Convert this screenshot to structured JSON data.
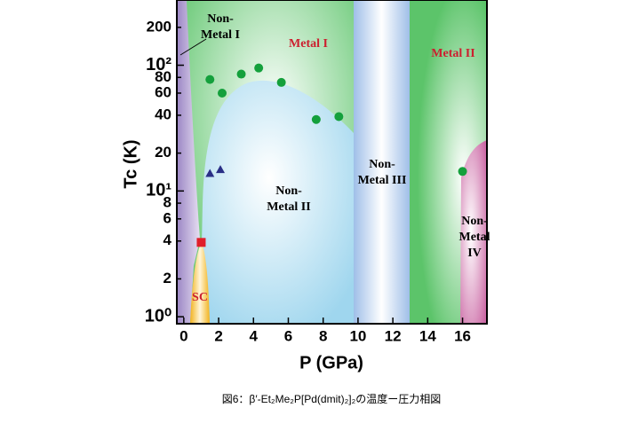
{
  "chart_data": {
    "type": "scatter",
    "xlabel": "P (GPa)",
    "ylabel": "Tc (K)",
    "caption": "図6：β′-Et₂Me₂P[Pd(dmit)₂]₂の温度ー圧力相図",
    "log_y": true,
    "xlim": [
      -0.4,
      17.4
    ],
    "ylim": [
      0.88,
      330
    ],
    "xticks": [
      0,
      2,
      4,
      6,
      8,
      10,
      12,
      14,
      16
    ],
    "yticks": [
      {
        "value": 1,
        "label": "10⁰"
      },
      2,
      4,
      6,
      8,
      {
        "value": 10,
        "label": "10¹"
      },
      20,
      40,
      60,
      80,
      {
        "value": 100,
        "label": "10²"
      },
      200
    ],
    "regions": [
      "Non-Metal I",
      "Metal I",
      "Metal II",
      "Non-Metal II",
      "Non-Metal III",
      "Non-Metal IV",
      "SC"
    ],
    "markers": [
      {
        "shape": "circle",
        "color": "#14a03c",
        "x": [
          1.5,
          2.2,
          3.3,
          4.3,
          5.6,
          7.6,
          8.9,
          16.0
        ],
        "y": [
          77,
          60,
          85,
          95,
          73,
          37,
          39,
          14.3
        ]
      },
      {
        "shape": "triangle",
        "color": "#2a2f86",
        "x": [
          1.5,
          2.1
        ],
        "y": [
          13.8,
          14.8
        ]
      },
      {
        "shape": "square",
        "color": "#e01e2a",
        "x": [
          1.0
        ],
        "y": [
          3.9
        ]
      }
    ]
  }
}
